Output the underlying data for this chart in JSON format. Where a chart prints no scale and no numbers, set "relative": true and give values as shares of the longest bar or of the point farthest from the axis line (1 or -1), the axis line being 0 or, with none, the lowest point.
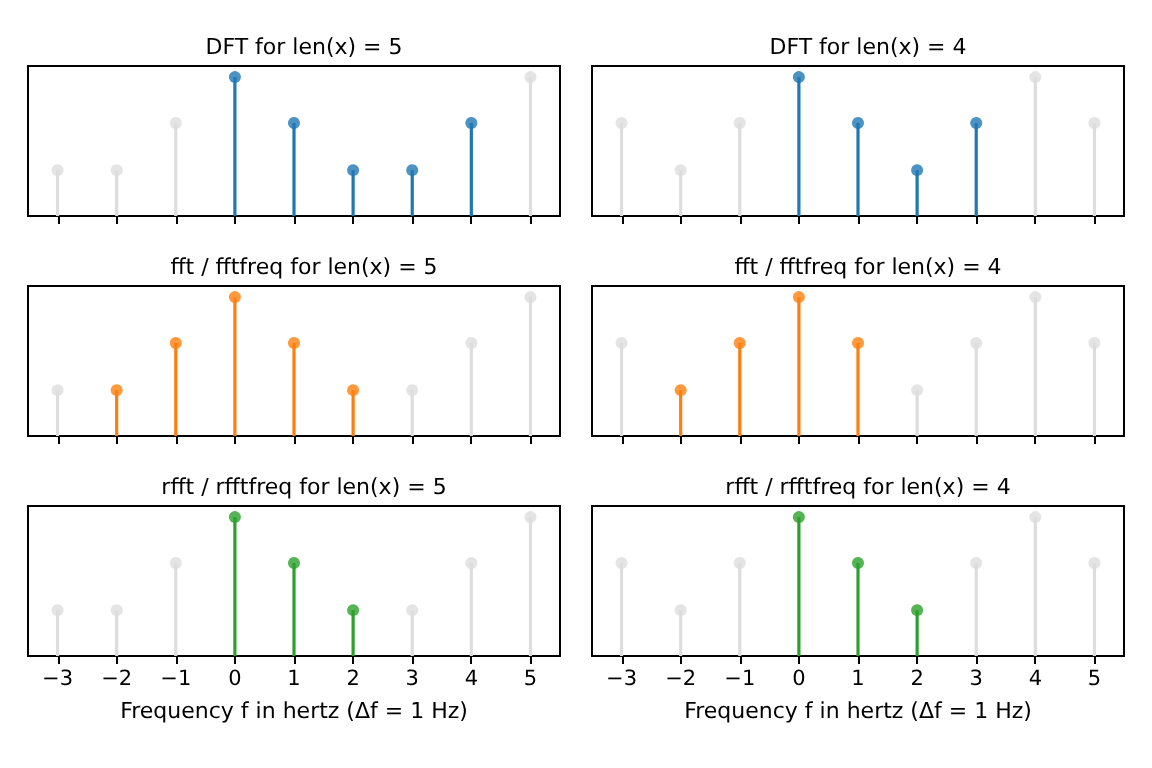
{
  "chart_data": [
    {
      "type": "lollipop",
      "title": "DFT for len(x) = 5",
      "relative": true,
      "xlim": [
        -3.5,
        5.5
      ],
      "xticks": [
        -3,
        -2,
        -1,
        0,
        1,
        2,
        3,
        4,
        5
      ],
      "tick_labels": false,
      "marker": "circle",
      "series": [
        {
          "color": "#dddddd",
          "x": [
            -3,
            -2,
            -1,
            5
          ],
          "values": [
            0.33,
            0.33,
            0.67,
            1
          ]
        },
        {
          "color": "#1f77b4",
          "x": [
            0,
            1,
            2,
            3,
            4
          ],
          "values": [
            1,
            0.67,
            0.33,
            0.33,
            0.67
          ]
        }
      ]
    },
    {
      "type": "lollipop",
      "title": "DFT for len(x) = 4",
      "relative": true,
      "xlim": [
        -3.5,
        5.5
      ],
      "xticks": [
        -3,
        -2,
        -1,
        0,
        1,
        2,
        3,
        4,
        5
      ],
      "tick_labels": false,
      "marker": "circle",
      "series": [
        {
          "color": "#dddddd",
          "x": [
            -3,
            -2,
            -1,
            4,
            5
          ],
          "values": [
            0.67,
            0.33,
            0.67,
            1,
            0.67
          ]
        },
        {
          "color": "#1f77b4",
          "x": [
            0,
            1,
            2,
            3
          ],
          "values": [
            1,
            0.67,
            0.33,
            0.67
          ]
        }
      ]
    },
    {
      "type": "lollipop",
      "title": "fft / fftfreq for len(x) = 5",
      "relative": true,
      "xlim": [
        -3.5,
        5.5
      ],
      "xticks": [
        -3,
        -2,
        -1,
        0,
        1,
        2,
        3,
        4,
        5
      ],
      "tick_labels": false,
      "marker": "circle",
      "series": [
        {
          "color": "#dddddd",
          "x": [
            -3,
            3,
            4,
            5
          ],
          "values": [
            0.33,
            0.33,
            0.67,
            1
          ]
        },
        {
          "color": "#ff7f0e",
          "x": [
            -2,
            -1,
            0,
            1,
            2
          ],
          "values": [
            0.33,
            0.67,
            1,
            0.67,
            0.33
          ]
        }
      ]
    },
    {
      "type": "lollipop",
      "title": "fft / fftfreq for len(x) = 4",
      "relative": true,
      "xlim": [
        -3.5,
        5.5
      ],
      "xticks": [
        -3,
        -2,
        -1,
        0,
        1,
        2,
        3,
        4,
        5
      ],
      "tick_labels": false,
      "marker": "circle",
      "series": [
        {
          "color": "#dddddd",
          "x": [
            -3,
            2,
            3,
            4,
            5
          ],
          "values": [
            0.67,
            0.33,
            0.67,
            1,
            0.67
          ]
        },
        {
          "color": "#ff7f0e",
          "x": [
            -2,
            -1,
            0,
            1
          ],
          "values": [
            0.33,
            0.67,
            1,
            0.67
          ]
        }
      ]
    },
    {
      "type": "lollipop",
      "title": "rfft / rfftfreq for len(x) = 5",
      "xlabel": "Frequency f in hertz (Δf = 1 Hz)",
      "relative": true,
      "xlim": [
        -3.5,
        5.5
      ],
      "xticks": [
        -3,
        -2,
        -1,
        0,
        1,
        2,
        3,
        4,
        5
      ],
      "tick_labels": "x",
      "marker": "circle",
      "series": [
        {
          "color": "#dddddd",
          "x": [
            -3,
            -2,
            -1,
            3,
            4,
            5
          ],
          "values": [
            0.33,
            0.33,
            0.67,
            0.33,
            0.67,
            1
          ]
        },
        {
          "color": "#2ca02c",
          "x": [
            0,
            1,
            2
          ],
          "values": [
            1,
            0.67,
            0.33
          ]
        }
      ]
    },
    {
      "type": "lollipop",
      "title": "rfft / rfftfreq for len(x) = 4",
      "xlabel": "Frequency f in hertz (Δf = 1 Hz)",
      "relative": true,
      "xlim": [
        -3.5,
        5.5
      ],
      "xticks": [
        -3,
        -2,
        -1,
        0,
        1,
        2,
        3,
        4,
        5
      ],
      "tick_labels": "x",
      "marker": "circle",
      "series": [
        {
          "color": "#dddddd",
          "x": [
            -3,
            -2,
            -1,
            3,
            4,
            5
          ],
          "values": [
            0.67,
            0.33,
            0.67,
            0.67,
            1,
            0.67
          ]
        },
        {
          "color": "#2ca02c",
          "x": [
            0,
            1,
            2
          ],
          "values": [
            1,
            0.67,
            0.33
          ]
        }
      ]
    }
  ]
}
